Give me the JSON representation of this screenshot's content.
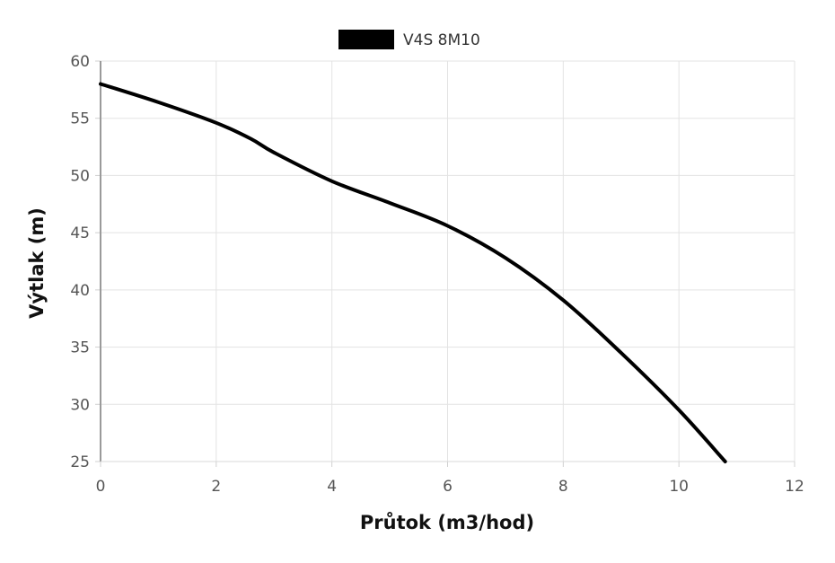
{
  "chart_data": {
    "type": "line",
    "title": "",
    "xlabel": "Průtok (m3/hod)",
    "ylabel": "Výtlak (m)",
    "xlim": [
      0,
      12
    ],
    "ylim": [
      25,
      60
    ],
    "x_ticks": [
      "0",
      "2",
      "4",
      "6",
      "8",
      "10",
      "12"
    ],
    "y_ticks": [
      "60",
      "55",
      "50",
      "45",
      "40",
      "35",
      "30",
      "25"
    ],
    "grid": true,
    "legend_position": "top-center",
    "series": [
      {
        "name": "V4S 8M10",
        "color": "#000000",
        "points": [
          {
            "x": 0,
            "y": 58
          },
          {
            "x": 1,
            "y": 56.4
          },
          {
            "x": 2,
            "y": 54.6
          },
          {
            "x": 2.6,
            "y": 53.2
          },
          {
            "x": 3,
            "y": 52
          },
          {
            "x": 4,
            "y": 49.5
          },
          {
            "x": 5,
            "y": 47.6
          },
          {
            "x": 6,
            "y": 45.6
          },
          {
            "x": 7,
            "y": 42.8
          },
          {
            "x": 8,
            "y": 39.1
          },
          {
            "x": 9,
            "y": 34.5
          },
          {
            "x": 10,
            "y": 29.5
          },
          {
            "x": 10.8,
            "y": 25
          }
        ]
      }
    ]
  }
}
